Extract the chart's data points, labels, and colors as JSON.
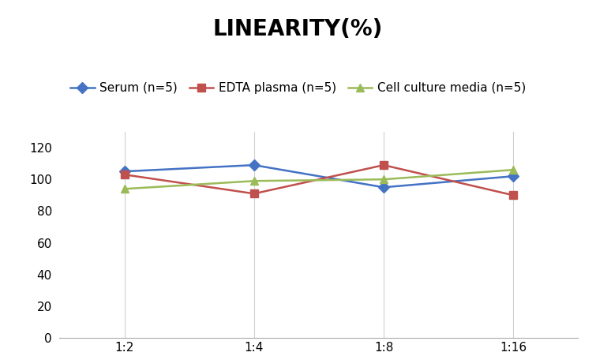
{
  "title": "LINEARITY(%)",
  "title_fontsize": 20,
  "title_fontweight": "bold",
  "x_labels": [
    "1:2",
    "1:4",
    "1:8",
    "1:16"
  ],
  "x_positions": [
    0,
    1,
    2,
    3
  ],
  "series": [
    {
      "label": "Serum (n=5)",
      "values": [
        105,
        109,
        95,
        102
      ],
      "color": "#4472C4",
      "marker": "D",
      "markersize": 7,
      "linewidth": 1.8
    },
    {
      "label": "EDTA plasma (n=5)",
      "values": [
        103,
        91,
        109,
        90
      ],
      "color": "#C0504D",
      "marker": "s",
      "markersize": 7,
      "linewidth": 1.8
    },
    {
      "label": "Cell culture media (n=5)",
      "values": [
        94,
        99,
        100,
        106
      ],
      "color": "#9BBB59",
      "marker": "^",
      "markersize": 7,
      "linewidth": 1.8
    }
  ],
  "ylim": [
    0,
    130
  ],
  "yticks": [
    0,
    20,
    40,
    60,
    80,
    100,
    120
  ],
  "background_color": "#ffffff",
  "grid_color": "#d0d0d0",
  "legend_fontsize": 11,
  "axis_fontsize": 11
}
